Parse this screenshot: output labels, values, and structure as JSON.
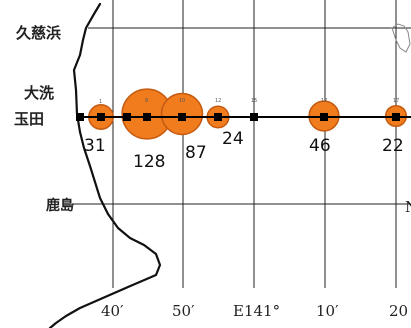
{
  "places": {
    "kujihama": "久慈浜",
    "oarai": "大洗",
    "tamata": "玉田",
    "kashima": "鹿島"
  },
  "lon_labels": {
    "m40": "40′",
    "m50": "50′",
    "e141": "E141°",
    "m10": "10′",
    "m20": "20"
  },
  "edge_fragment": "N",
  "colors": {
    "bubble_fill": "#f07c1e",
    "bubble_stroke": "#c45a10",
    "transect_line": "#000000",
    "station_marker": "#000000",
    "grid_line": "#222222",
    "coastline": "#111111"
  },
  "stations": [
    {
      "id": "s1",
      "number": "1",
      "value": "31",
      "count": 31
    },
    {
      "id": "s2",
      "number": "",
      "value": "",
      "count": 0
    },
    {
      "id": "s3",
      "number": "",
      "value": "",
      "count": 0
    },
    {
      "id": "s4",
      "number": "8",
      "value": "128",
      "count": 128
    },
    {
      "id": "s5",
      "number": "10",
      "value": "87",
      "count": 87
    },
    {
      "id": "s6",
      "number": "12",
      "value": "24",
      "count": 24
    },
    {
      "id": "s7",
      "number": "15",
      "value": "",
      "count": 0
    },
    {
      "id": "s8",
      "number": "17",
      "value": "46",
      "count": 46
    },
    {
      "id": "s9",
      "number": "17",
      "value": "22",
      "count": 22
    }
  ]
}
